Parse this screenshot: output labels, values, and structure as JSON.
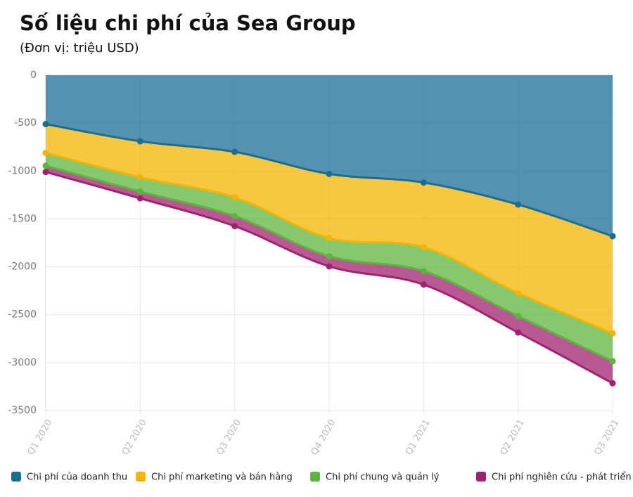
{
  "chart_data": {
    "type": "stacked-area",
    "title": "Số liệu chi phí của Sea Group",
    "subtitle": "(Đơn vị: triệu USD)",
    "categories": [
      "Q1 2020",
      "Q2 2020",
      "Q3 2020",
      "Q4 2020",
      "Q1 2021",
      "Q2 2021",
      "Q3 2021"
    ],
    "series": [
      {
        "name": "Chi phí của doanh thu",
        "color": "#1a6e96",
        "values": [
          -510,
          -690,
          -800,
          -1030,
          -1120,
          -1350,
          -1680
        ]
      },
      {
        "name": "Chi phí marketing và bán hàng",
        "color": "#f4b400",
        "values": [
          -300,
          -375,
          -475,
          -670,
          -675,
          -925,
          -1015
        ]
      },
      {
        "name": "Chi phí chung và quản lý",
        "color": "#5cb53c",
        "values": [
          -135,
          -150,
          -195,
          -190,
          -250,
          -240,
          -290
        ]
      },
      {
        "name": "Chi phí nghiên cứu - phát triển",
        "color": "#a0226f",
        "values": [
          -65,
          -70,
          -105,
          -105,
          -140,
          -170,
          -230
        ]
      }
    ],
    "ylim": [
      -3500,
      0
    ],
    "yticks": [
      0,
      -500,
      -1000,
      -1500,
      -2000,
      -2500,
      -3000,
      -3500
    ],
    "grid": true,
    "legend": "bottom"
  }
}
